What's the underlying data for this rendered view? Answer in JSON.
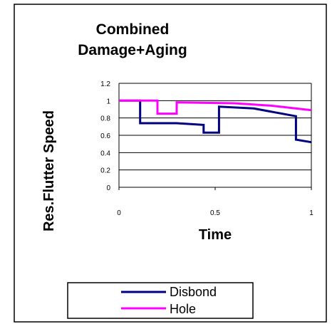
{
  "chart_data": {
    "type": "line",
    "title_lines": [
      "Combined",
      "Damage+Aging"
    ],
    "xlabel": "Time",
    "ylabel": "Res.Flutter Speed",
    "xlim": [
      0,
      1
    ],
    "ylim": [
      0,
      1.2
    ],
    "x_ticks": [
      "0",
      "0.5",
      "1"
    ],
    "y_ticks": [
      "0",
      "0.2",
      "0.4",
      "0.6",
      "0.8",
      "1",
      "1.2"
    ],
    "grid": "horizontal",
    "legend_position": "bottom",
    "series": [
      {
        "name": "Disbond",
        "color": "#000080",
        "x": [
          0,
          0.11,
          0.11,
          0.3,
          0.44,
          0.44,
          0.52,
          0.52,
          0.7,
          0.92,
          0.92,
          1.0
        ],
        "y": [
          1.0,
          1.0,
          0.74,
          0.74,
          0.72,
          0.63,
          0.63,
          0.93,
          0.91,
          0.82,
          0.55,
          0.52
        ]
      },
      {
        "name": "Hole",
        "color": "#ff00ff",
        "x": [
          0,
          0.2,
          0.2,
          0.3,
          0.3,
          0.6,
          0.8,
          1.0
        ],
        "y": [
          1.0,
          1.0,
          0.85,
          0.85,
          0.98,
          0.97,
          0.94,
          0.89
        ]
      }
    ]
  }
}
